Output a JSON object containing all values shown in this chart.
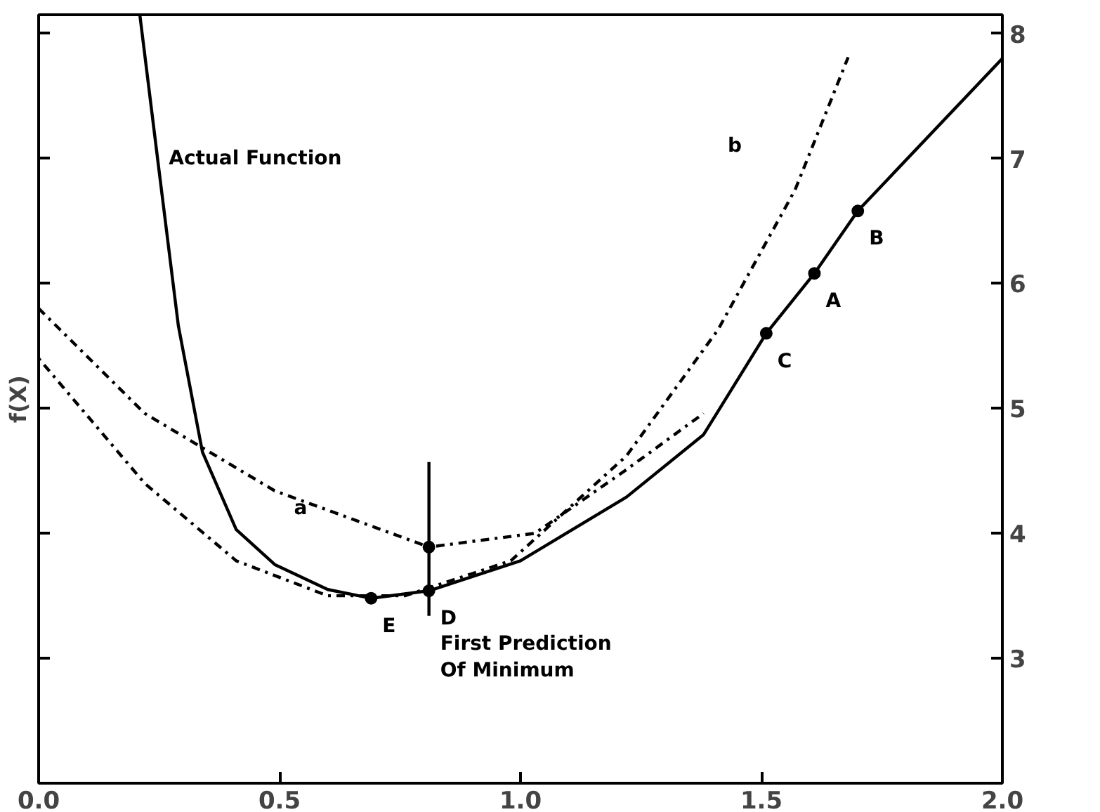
{
  "chart_data": {
    "type": "line",
    "ylabel": "f(X)",
    "xlim": [
      0,
      2.0
    ],
    "ylim": [
      2.0,
      8.15
    ],
    "xticks": [
      {
        "value": 0,
        "label": "0.0"
      },
      0.5,
      {
        "value": 1,
        "label": "1.0"
      },
      1.5,
      {
        "value": 2,
        "label": "2.0"
      }
    ],
    "yticks": [
      3,
      4,
      5,
      6,
      7,
      8
    ],
    "grid": false,
    "series": [
      {
        "color": "#000000",
        "line_style": "solid",
        "x": [
          0.21,
          0.25,
          0.29,
          0.34,
          0.41,
          0.49,
          0.6,
          0.69,
          0.81,
          1.0,
          1.22,
          1.38,
          1.51,
          1.61,
          1.7,
          2.0
        ],
        "values": [
          8.15,
          6.9,
          5.66,
          4.65,
          4.03,
          3.75,
          3.55,
          3.48,
          3.54,
          3.78,
          4.29,
          4.79,
          5.6,
          6.08,
          6.58,
          7.8
        ]
      },
      {
        "color": "#000000",
        "line_style": "dashdot",
        "x": [
          0,
          0.22,
          0.49,
          0.81,
          1.03,
          1.22,
          1.38
        ],
        "values": [
          5.8,
          4.96,
          4.34,
          3.89,
          4.0,
          4.51,
          4.96
        ]
      },
      {
        "color": "#000000",
        "line_style": "dotdash",
        "x": [
          0,
          0.22,
          0.41,
          0.6,
          0.76,
          0.98,
          1.22,
          1.41,
          1.57,
          1.68
        ],
        "values": [
          5.4,
          4.4,
          3.78,
          3.5,
          3.5,
          3.78,
          4.62,
          5.63,
          6.75,
          7.81
        ]
      },
      {
        "color": "#000000",
        "line_style": "solid",
        "x": [
          0.81,
          0.81
        ],
        "values": [
          3.34,
          4.57
        ]
      },
      {
        "type": "scatter",
        "color": "#000000",
        "marker": "circle",
        "x": [
          0.81,
          0.81,
          0.69,
          1.51,
          1.61,
          1.7
        ],
        "values": [
          3.54,
          3.89,
          3.48,
          5.6,
          6.08,
          6.58
        ]
      }
    ],
    "annotations": [
      "Actual Function",
      "a",
      "b",
      {
        "text": "D",
        "x": 0.81,
        "y": 3.54
      },
      {
        "text": "E",
        "x": 0.69,
        "y": 3.48
      },
      {
        "text": "C",
        "x": 1.51,
        "y": 5.6
      },
      {
        "text": "A",
        "x": 1.61,
        "y": 6.08
      },
      {
        "text": "B",
        "x": 1.7,
        "y": 6.58
      },
      {
        "text": "First Prediction\nOf Minimum",
        "x": 0.81,
        "y": 3.34
      }
    ]
  }
}
